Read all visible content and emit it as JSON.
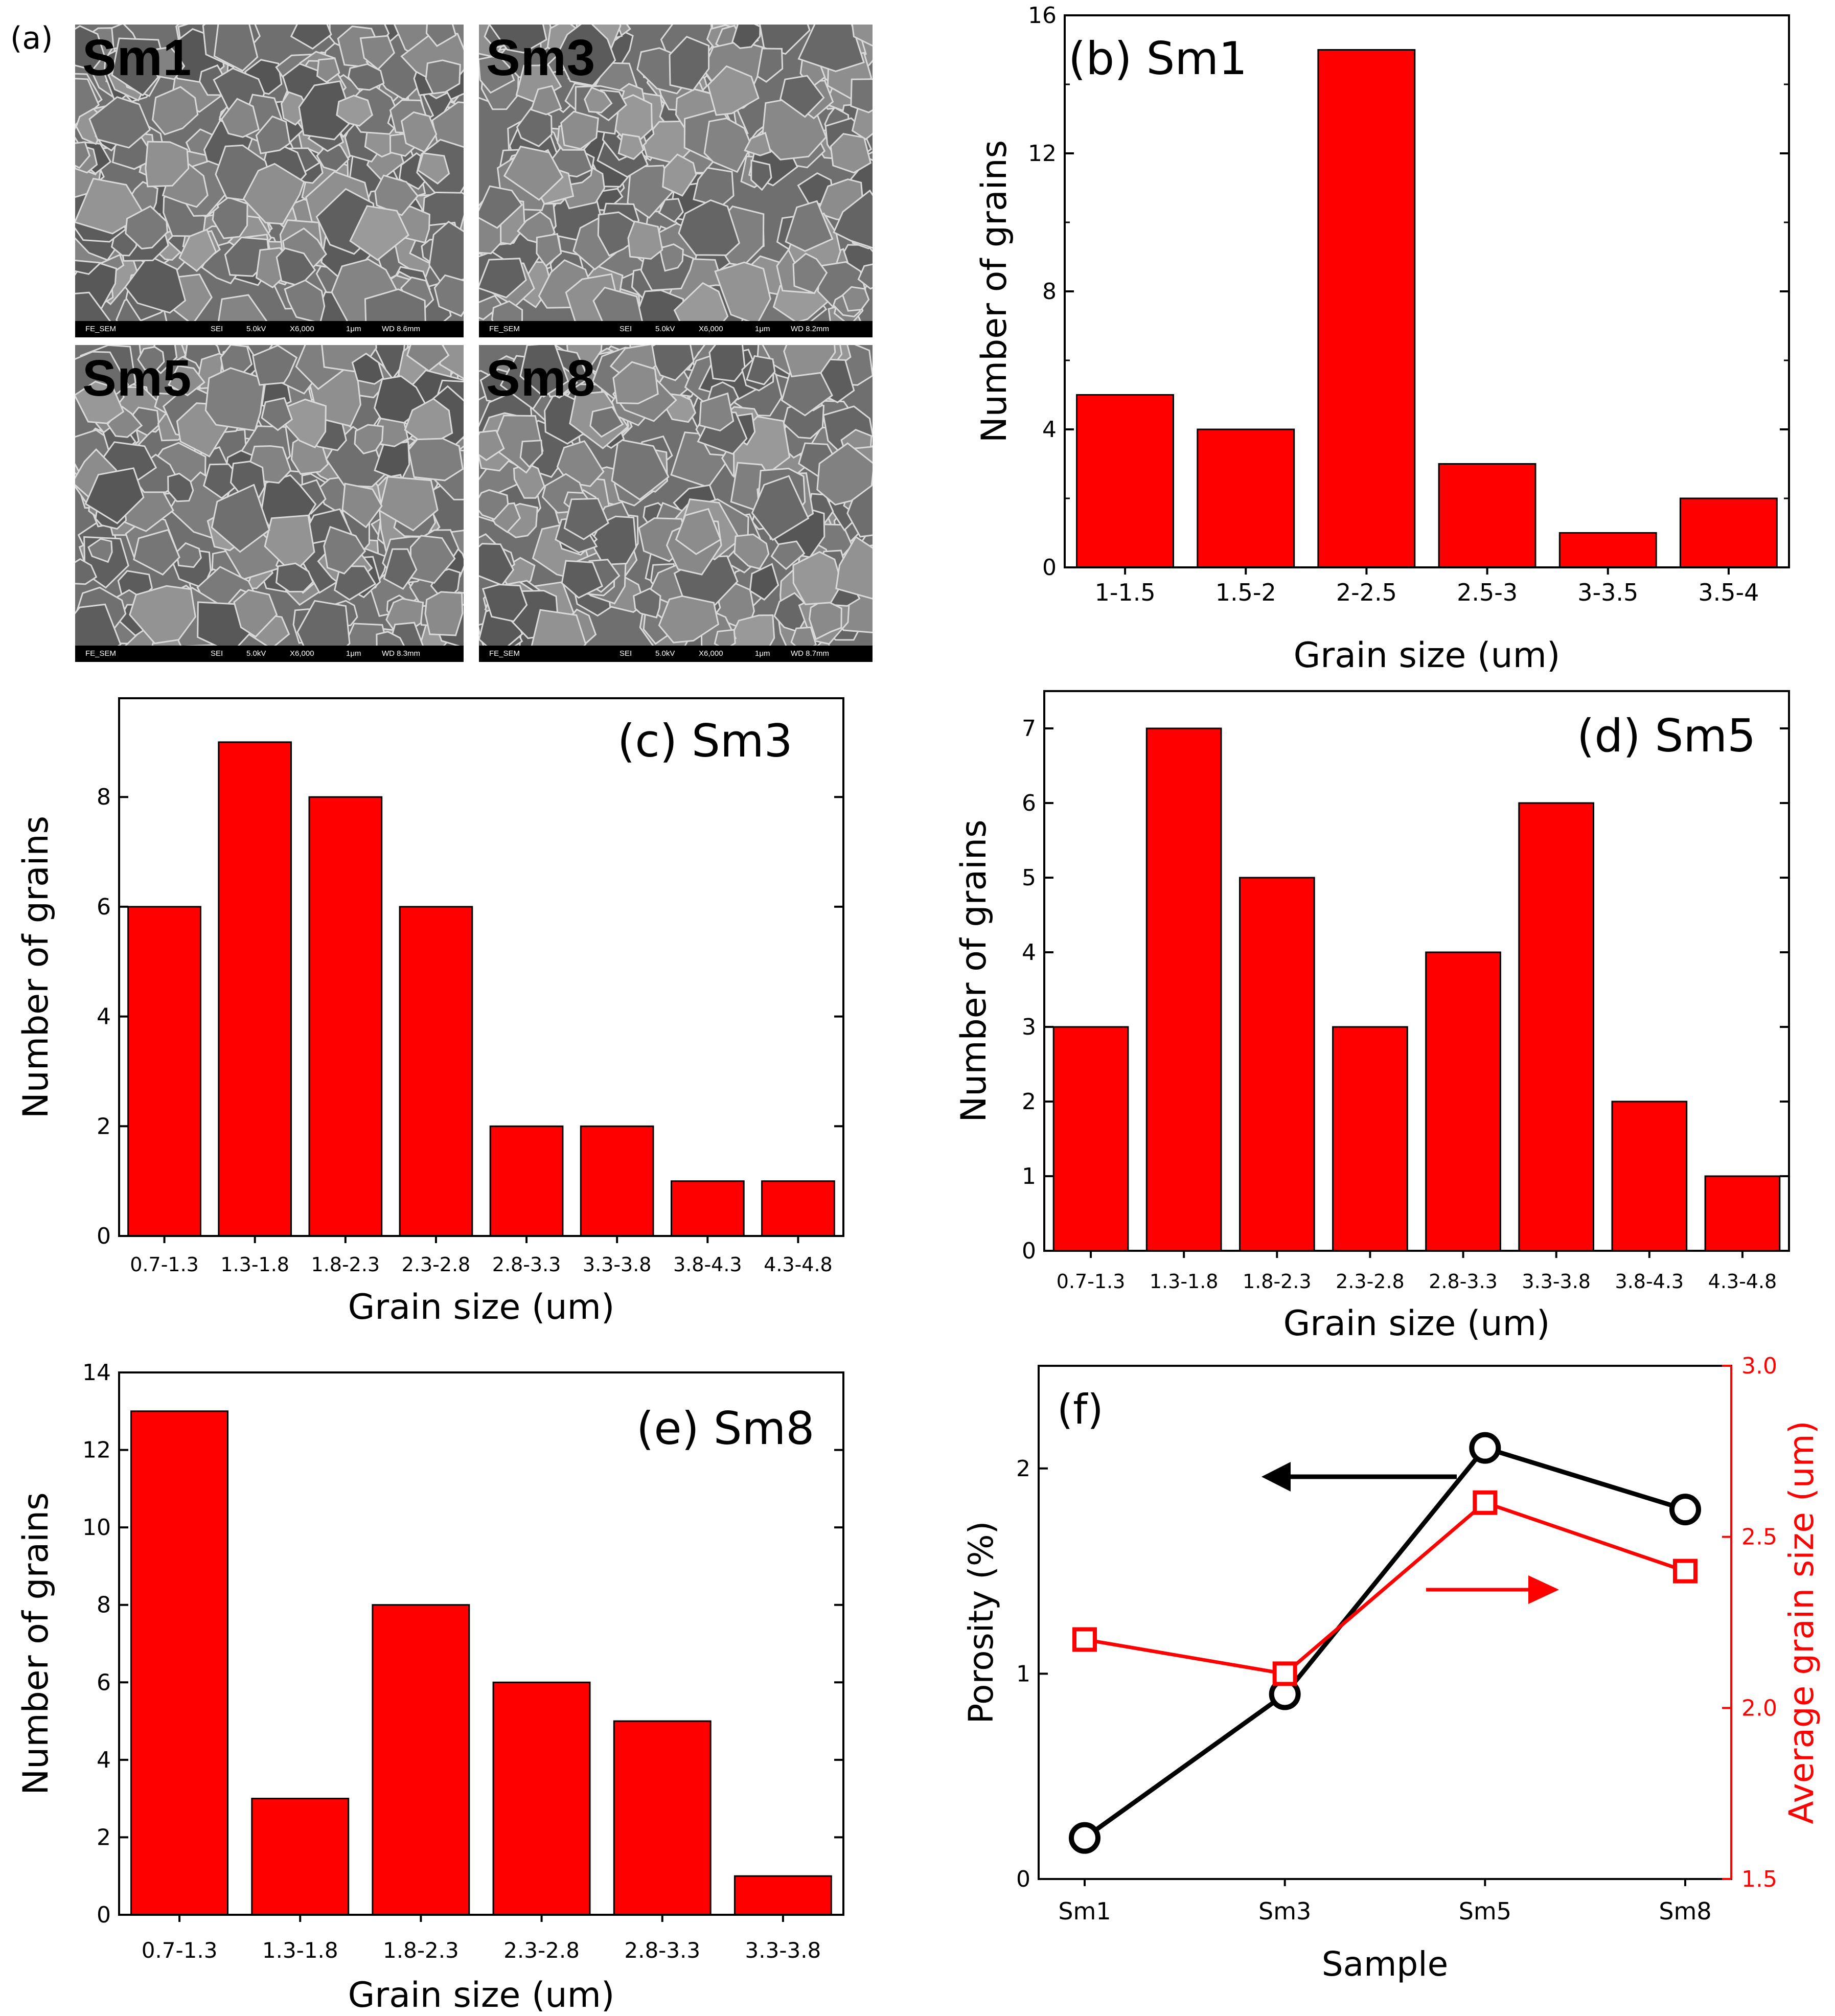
{
  "panel_a": {
    "label": "(a)",
    "images": [
      {
        "label": "Sm1",
        "bar": {
          "left": "FE_SEM",
          "sei": "SEI",
          "kv": "5.0kV",
          "mag": "X6,000",
          "scale": "1μm",
          "wd": "WD 8.6mm"
        }
      },
      {
        "label": "Sm3",
        "bar": {
          "left": "FE_SEM",
          "sei": "SEI",
          "kv": "5.0kV",
          "mag": "X6,000",
          "scale": "1μm",
          "wd": "WD 8.2mm"
        }
      },
      {
        "label": "Sm5",
        "bar": {
          "left": "FE_SEM",
          "sei": "SEI",
          "kv": "5.0kV",
          "mag": "X6,000",
          "scale": "1μm",
          "wd": "WD 8.3mm"
        }
      },
      {
        "label": "Sm8",
        "bar": {
          "left": "FE_SEM",
          "sei": "SEI",
          "kv": "5.0kV",
          "mag": "X6,000",
          "scale": "1μm",
          "wd": "WD 8.7mm"
        }
      }
    ]
  },
  "colors": {
    "bar_fill": "#ff0000",
    "axis": "#000000",
    "right_axis": "#ff0000",
    "porosity_line": "#000000",
    "grain_line": "#ff0000"
  },
  "chart_data": [
    {
      "id": "b",
      "type": "bar",
      "title": "(b) Sm1",
      "xlabel": "Grain size (um)",
      "ylabel": "Number of grains",
      "categories": [
        "1-1.5",
        "1.5-2",
        "2-2.5",
        "2.5-3",
        "3-3.5",
        "3.5-4"
      ],
      "values": [
        5,
        4,
        15,
        3,
        1,
        2
      ],
      "ylim": [
        0,
        16
      ],
      "yticks": [
        {
          "v": 0,
          "label": "0"
        },
        {
          "v": 4,
          "label": "4"
        },
        {
          "v": 8,
          "label": "8"
        },
        {
          "v": 12,
          "label": "12"
        },
        {
          "v": 16,
          "label": "16"
        }
      ],
      "minor_yticks": [
        2,
        6,
        10,
        14
      ]
    },
    {
      "id": "c",
      "type": "bar",
      "title": "(c) Sm3",
      "xlabel": "Grain size (um)",
      "ylabel": "Number of grains",
      "categories": [
        "0.7-1.3",
        "1.3-1.8",
        "1.8-2.3",
        "2.3-2.8",
        "2.8-3.3",
        "3.3-3.8",
        "3.8-4.3",
        "4.3-4.8"
      ],
      "values": [
        6,
        9,
        8,
        6,
        2,
        2,
        1,
        1
      ],
      "ylim": [
        0,
        9.8
      ],
      "yticks": [
        {
          "v": 0,
          "label": "0"
        },
        {
          "v": 2,
          "label": "2"
        },
        {
          "v": 4,
          "label": "4"
        },
        {
          "v": 6,
          "label": "6"
        },
        {
          "v": 8,
          "label": "8"
        }
      ],
      "minor_yticks": []
    },
    {
      "id": "d",
      "type": "bar",
      "title": "(d) Sm5",
      "xlabel": "Grain size (um)",
      "ylabel": "Number of grains",
      "categories": [
        "0.7-1.3",
        "1.3-1.8",
        "1.8-2.3",
        "2.3-2.8",
        "2.8-3.3",
        "3.3-3.8",
        "3.8-4.3",
        "4.3-4.8"
      ],
      "values": [
        3,
        7,
        5,
        3,
        4,
        6,
        2,
        1
      ],
      "ylim": [
        0,
        7.5
      ],
      "yticks": [
        {
          "v": 0,
          "label": "0"
        },
        {
          "v": 1,
          "label": "1"
        },
        {
          "v": 2,
          "label": "2"
        },
        {
          "v": 3,
          "label": "3"
        },
        {
          "v": 4,
          "label": "4"
        },
        {
          "v": 5,
          "label": "5"
        },
        {
          "v": 6,
          "label": "6"
        },
        {
          "v": 7,
          "label": "7"
        }
      ],
      "minor_yticks": []
    },
    {
      "id": "e",
      "type": "bar",
      "title": "(e) Sm8",
      "xlabel": "Grain size (um)",
      "ylabel": "Number of grains",
      "categories": [
        "0.7-1.3",
        "1.3-1.8",
        "1.8-2.3",
        "2.3-2.8",
        "2.8-3.3",
        "3.3-3.8"
      ],
      "values": [
        13,
        3,
        8,
        6,
        5,
        1
      ],
      "ylim": [
        0,
        14
      ],
      "yticks": [
        {
          "v": 0,
          "label": "0"
        },
        {
          "v": 2,
          "label": "2"
        },
        {
          "v": 4,
          "label": "4"
        },
        {
          "v": 6,
          "label": "6"
        },
        {
          "v": 8,
          "label": "8"
        },
        {
          "v": 10,
          "label": "10"
        },
        {
          "v": 12,
          "label": "12"
        },
        {
          "v": 14,
          "label": "14"
        }
      ],
      "minor_yticks": []
    },
    {
      "id": "f",
      "type": "line",
      "title": "(f)",
      "xlabel": "Sample",
      "ylabel": "Porosity (%)",
      "ylabel_right": "Average grain size (um)",
      "categories": [
        "Sm1",
        "Sm3",
        "Sm5",
        "Sm8"
      ],
      "ylim": [
        0,
        2.5
      ],
      "ylim_right": [
        1.5,
        3.0
      ],
      "yticks": [
        {
          "v": 0,
          "label": "0"
        },
        {
          "v": 1,
          "label": "1"
        },
        {
          "v": 2,
          "label": "2"
        }
      ],
      "yticks_right": [
        {
          "v": 1.5,
          "label": "1.5"
        },
        {
          "v": 2.0,
          "label": "2.0"
        },
        {
          "v": 2.5,
          "label": "2.5"
        },
        {
          "v": 3.0,
          "label": "3.0"
        }
      ],
      "series": [
        {
          "axis": "left",
          "marker": "circle",
          "values": [
            0.2,
            0.9,
            2.1,
            1.8
          ]
        },
        {
          "axis": "right",
          "marker": "square",
          "values": [
            2.2,
            2.1,
            2.6,
            2.4
          ]
        }
      ]
    }
  ]
}
